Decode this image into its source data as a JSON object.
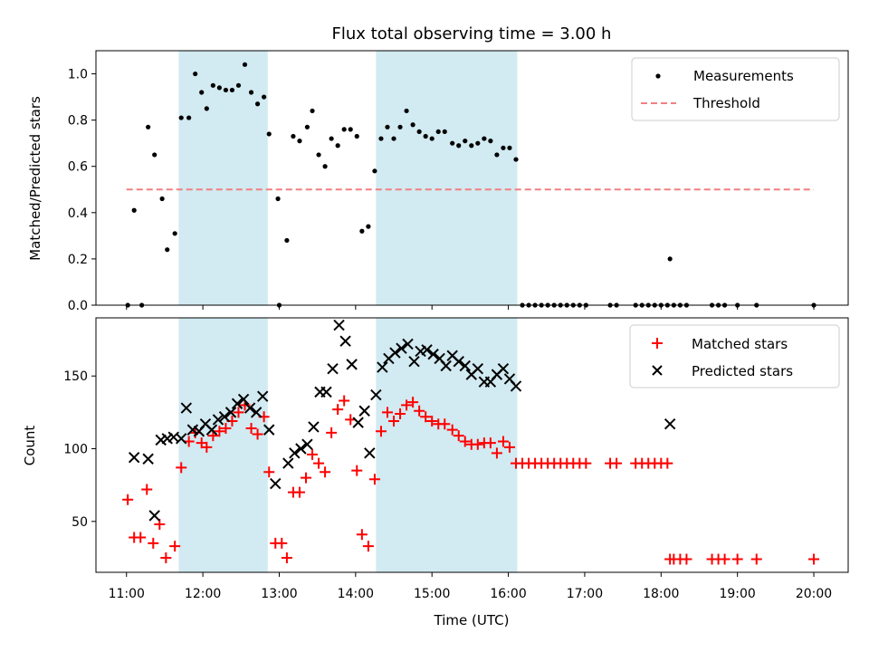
{
  "chart_data": {
    "title": "Flux total observing time = 3.00 h",
    "xlabel": "Time (UTC)",
    "x_ticks": [
      "11:00",
      "12:00",
      "13:00",
      "14:00",
      "15:00",
      "16:00",
      "17:00",
      "18:00",
      "19:00",
      "20:00"
    ],
    "x_range_hours": [
      10.6,
      20.45
    ],
    "shaded_intervals": [
      [
        "11:41",
        "12:51"
      ],
      [
        "14:16",
        "16:07"
      ]
    ],
    "shade_color": "#add8e6",
    "top": {
      "type": "scatter",
      "ylabel": "Matched/Predicted stars",
      "ylim": [
        0,
        1.1
      ],
      "y_ticks": [
        "0.0",
        "0.2",
        "0.4",
        "0.6",
        "0.8",
        "1.0"
      ],
      "threshold": 0.5,
      "threshold_x_range": [
        "11:00",
        "20:00"
      ],
      "threshold_color": "#f08080",
      "legend": {
        "position": "top-right",
        "measurements": "Measurements",
        "threshold": "Threshold"
      },
      "points": [
        [
          "11:01",
          0.0
        ],
        [
          "11:06",
          0.41
        ],
        [
          "11:12",
          0.0
        ],
        [
          "11:17",
          0.77
        ],
        [
          "11:22",
          0.65
        ],
        [
          "11:28",
          0.46
        ],
        [
          "11:32",
          0.24
        ],
        [
          "11:38",
          0.31
        ],
        [
          "11:43",
          0.81
        ],
        [
          "11:49",
          0.81
        ],
        [
          "11:54",
          1.0
        ],
        [
          "11:59",
          0.92
        ],
        [
          "12:03",
          0.85
        ],
        [
          "12:08",
          0.95
        ],
        [
          "12:13",
          0.94
        ],
        [
          "12:18",
          0.93
        ],
        [
          "12:23",
          0.93
        ],
        [
          "12:28",
          0.95
        ],
        [
          "12:33",
          1.04
        ],
        [
          "12:38",
          0.92
        ],
        [
          "12:43",
          0.87
        ],
        [
          "12:48",
          0.9
        ],
        [
          "12:52",
          0.74
        ],
        [
          "12:59",
          0.46
        ],
        [
          "13:00",
          0.0
        ],
        [
          "13:06",
          0.28
        ],
        [
          "13:11",
          0.73
        ],
        [
          "13:16",
          0.71
        ],
        [
          "13:22",
          0.77
        ],
        [
          "13:26",
          0.84
        ],
        [
          "13:31",
          0.65
        ],
        [
          "13:36",
          0.6
        ],
        [
          "13:41",
          0.72
        ],
        [
          "13:46",
          0.69
        ],
        [
          "13:51",
          0.76
        ],
        [
          "13:56",
          0.76
        ],
        [
          "14:01",
          0.73
        ],
        [
          "14:05",
          0.32
        ],
        [
          "14:10",
          0.34
        ],
        [
          "14:15",
          0.58
        ],
        [
          "14:20",
          0.72
        ],
        [
          "14:25",
          0.77
        ],
        [
          "14:30",
          0.72
        ],
        [
          "14:35",
          0.77
        ],
        [
          "14:40",
          0.84
        ],
        [
          "14:45",
          0.78
        ],
        [
          "14:50",
          0.75
        ],
        [
          "14:55",
          0.73
        ],
        [
          "15:00",
          0.72
        ],
        [
          "15:05",
          0.75
        ],
        [
          "15:10",
          0.75
        ],
        [
          "15:16",
          0.7
        ],
        [
          "15:21",
          0.69
        ],
        [
          "15:26",
          0.71
        ],
        [
          "15:31",
          0.69
        ],
        [
          "15:36",
          0.7
        ],
        [
          "15:41",
          0.72
        ],
        [
          "15:46",
          0.71
        ],
        [
          "15:51",
          0.65
        ],
        [
          "15:56",
          0.68
        ],
        [
          "16:01",
          0.68
        ],
        [
          "16:06",
          0.63
        ],
        [
          "16:11",
          0.0
        ],
        [
          "16:16",
          0.0
        ],
        [
          "16:21",
          0.0
        ],
        [
          "16:26",
          0.0
        ],
        [
          "16:31",
          0.0
        ],
        [
          "16:36",
          0.0
        ],
        [
          "16:41",
          0.0
        ],
        [
          "16:46",
          0.0
        ],
        [
          "16:51",
          0.0
        ],
        [
          "16:56",
          0.0
        ],
        [
          "17:01",
          0.0
        ],
        [
          "17:20",
          0.0
        ],
        [
          "17:25",
          0.0
        ],
        [
          "17:40",
          0.0
        ],
        [
          "17:45",
          0.0
        ],
        [
          "17:50",
          0.0
        ],
        [
          "17:55",
          0.0
        ],
        [
          "18:00",
          0.0
        ],
        [
          "18:05",
          0.0
        ],
        [
          "18:07",
          0.2
        ],
        [
          "18:10",
          0.0
        ],
        [
          "18:15",
          0.0
        ],
        [
          "18:20",
          0.0
        ],
        [
          "18:40",
          0.0
        ],
        [
          "18:45",
          0.0
        ],
        [
          "18:50",
          0.0
        ],
        [
          "19:00",
          0.0
        ],
        [
          "19:15",
          0.0
        ],
        [
          "20:00",
          0.0
        ]
      ]
    },
    "bottom": {
      "type": "scatter",
      "ylabel": "Count",
      "ylim": [
        15,
        190
      ],
      "y_ticks": [
        "50",
        "100",
        "150"
      ],
      "legend": {
        "position": "top-right",
        "matched": "Matched stars",
        "predicted": "Predicted stars"
      },
      "matched_color": "#ff0000",
      "predicted_color": "#000000",
      "matched": [
        [
          "11:01",
          65
        ],
        [
          "11:06",
          39
        ],
        [
          "11:11",
          39
        ],
        [
          "11:16",
          72
        ],
        [
          "11:21",
          35
        ],
        [
          "11:26",
          48
        ],
        [
          "11:31",
          25
        ],
        [
          "11:38",
          33
        ],
        [
          "11:43",
          87
        ],
        [
          "11:49",
          105
        ],
        [
          "11:54",
          111
        ],
        [
          "11:59",
          104
        ],
        [
          "12:03",
          101
        ],
        [
          "12:08",
          109
        ],
        [
          "12:13",
          112
        ],
        [
          "12:18",
          114
        ],
        [
          "12:23",
          119
        ],
        [
          "12:28",
          125
        ],
        [
          "12:33",
          130
        ],
        [
          "12:38",
          114
        ],
        [
          "12:43",
          110
        ],
        [
          "12:48",
          122
        ],
        [
          "12:52",
          84
        ],
        [
          "12:57",
          35
        ],
        [
          "13:02",
          35
        ],
        [
          "13:06",
          25
        ],
        [
          "13:11",
          70
        ],
        [
          "13:16",
          70
        ],
        [
          "13:21",
          80
        ],
        [
          "13:26",
          96
        ],
        [
          "13:31",
          90
        ],
        [
          "13:36",
          84
        ],
        [
          "13:41",
          111
        ],
        [
          "13:46",
          127
        ],
        [
          "13:51",
          133
        ],
        [
          "13:56",
          120
        ],
        [
          "14:01",
          85
        ],
        [
          "14:05",
          41
        ],
        [
          "14:10",
          33
        ],
        [
          "14:15",
          79
        ],
        [
          "14:20",
          112
        ],
        [
          "14:25",
          125
        ],
        [
          "14:30",
          119
        ],
        [
          "14:35",
          124
        ],
        [
          "14:40",
          130
        ],
        [
          "14:45",
          132
        ],
        [
          "14:50",
          126
        ],
        [
          "14:55",
          122
        ],
        [
          "15:00",
          119
        ],
        [
          "15:05",
          117
        ],
        [
          "15:10",
          117
        ],
        [
          "15:16",
          113
        ],
        [
          "15:21",
          109
        ],
        [
          "15:26",
          105
        ],
        [
          "15:31",
          103
        ],
        [
          "15:36",
          103
        ],
        [
          "15:41",
          104
        ],
        [
          "15:46",
          104
        ],
        [
          "15:51",
          97
        ],
        [
          "15:56",
          105
        ],
        [
          "16:01",
          101
        ],
        [
          "16:06",
          90
        ],
        [
          "16:11",
          90
        ],
        [
          "16:16",
          90
        ],
        [
          "16:21",
          90
        ],
        [
          "16:26",
          90
        ],
        [
          "16:31",
          90
        ],
        [
          "16:36",
          90
        ],
        [
          "16:41",
          90
        ],
        [
          "16:46",
          90
        ],
        [
          "16:51",
          90
        ],
        [
          "16:56",
          90
        ],
        [
          "17:01",
          90
        ],
        [
          "17:20",
          90
        ],
        [
          "17:25",
          90
        ],
        [
          "17:40",
          90
        ],
        [
          "17:45",
          90
        ],
        [
          "17:50",
          90
        ],
        [
          "17:55",
          90
        ],
        [
          "18:00",
          90
        ],
        [
          "18:05",
          90
        ],
        [
          "18:07",
          24
        ],
        [
          "18:10",
          24
        ],
        [
          "18:15",
          24
        ],
        [
          "18:20",
          24
        ],
        [
          "18:40",
          24
        ],
        [
          "18:45",
          24
        ],
        [
          "18:50",
          24
        ],
        [
          "19:00",
          24
        ],
        [
          "19:15",
          24
        ],
        [
          "20:00",
          24
        ]
      ],
      "predicted": [
        [
          "11:06",
          94
        ],
        [
          "11:17",
          93
        ],
        [
          "11:22",
          54
        ],
        [
          "11:27",
          106
        ],
        [
          "11:32",
          107
        ],
        [
          "11:37",
          108
        ],
        [
          "11:43",
          107
        ],
        [
          "11:47",
          128
        ],
        [
          "11:52",
          113
        ],
        [
          "11:57",
          112
        ],
        [
          "12:02",
          117
        ],
        [
          "12:07",
          113
        ],
        [
          "12:12",
          120
        ],
        [
          "12:17",
          122
        ],
        [
          "12:22",
          125
        ],
        [
          "12:27",
          131
        ],
        [
          "12:32",
          134
        ],
        [
          "12:37",
          128
        ],
        [
          "12:42",
          125
        ],
        [
          "12:47",
          136
        ],
        [
          "12:52",
          113
        ],
        [
          "12:57",
          76
        ],
        [
          "13:07",
          90
        ],
        [
          "13:12",
          97
        ],
        [
          "13:17",
          100
        ],
        [
          "13:22",
          103
        ],
        [
          "13:27",
          115
        ],
        [
          "13:32",
          139
        ],
        [
          "13:37",
          139
        ],
        [
          "13:42",
          155
        ],
        [
          "13:47",
          185
        ],
        [
          "13:52",
          174
        ],
        [
          "13:57",
          158
        ],
        [
          "14:02",
          118
        ],
        [
          "14:07",
          126
        ],
        [
          "14:11",
          97
        ],
        [
          "14:16",
          137
        ],
        [
          "14:21",
          156
        ],
        [
          "14:26",
          162
        ],
        [
          "14:31",
          166
        ],
        [
          "14:36",
          169
        ],
        [
          "14:41",
          172
        ],
        [
          "14:46",
          160
        ],
        [
          "14:51",
          167
        ],
        [
          "14:56",
          168
        ],
        [
          "15:01",
          165
        ],
        [
          "15:06",
          162
        ],
        [
          "15:11",
          157
        ],
        [
          "15:16",
          164
        ],
        [
          "15:21",
          160
        ],
        [
          "15:26",
          157
        ],
        [
          "15:31",
          151
        ],
        [
          "15:36",
          155
        ],
        [
          "15:41",
          146
        ],
        [
          "15:46",
          146
        ],
        [
          "15:51",
          151
        ],
        [
          "15:56",
          155
        ],
        [
          "16:01",
          148
        ],
        [
          "16:06",
          143
        ],
        [
          "18:07",
          117
        ]
      ]
    }
  }
}
